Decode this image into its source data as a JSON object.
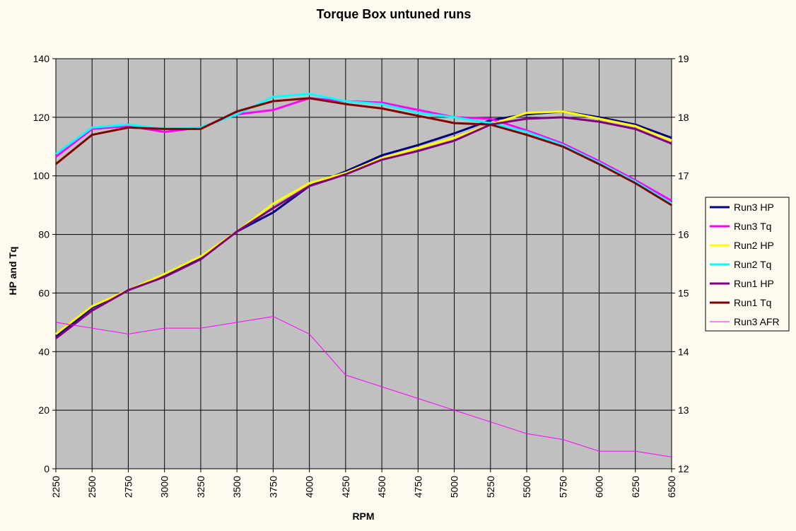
{
  "chart_data": {
    "type": "line",
    "title": "Torque Box untuned runs",
    "xlabel": "RPM",
    "ylabel": "HP and Tq",
    "ylim": [
      0,
      140
    ],
    "y2lim": [
      12,
      19
    ],
    "yticks": [
      "0",
      "20",
      "40",
      "60",
      "80",
      "100",
      "120",
      "140"
    ],
    "y2ticks": [
      "12",
      "13",
      "14",
      "15",
      "16",
      "17",
      "18",
      "19"
    ],
    "x": [
      "2250",
      "2500",
      "2750",
      "3000",
      "3250",
      "3500",
      "3750",
      "4000",
      "4250",
      "4500",
      "4750",
      "5000",
      "5250",
      "5500",
      "5750",
      "6000",
      "6250",
      "6500"
    ],
    "grid": true,
    "legend_position": "right",
    "plot_background": "#c0c0c0",
    "series": [
      {
        "name": "Run3 HP",
        "color": "#000080",
        "axis": "left",
        "values": [
          45,
          55,
          61,
          66,
          72,
          81,
          87.5,
          96.5,
          101.5,
          107,
          110.5,
          114.5,
          119,
          121,
          122,
          120,
          117.5,
          113
        ]
      },
      {
        "name": "Run3 Tq",
        "color": "#ff00ff",
        "axis": "left",
        "values": [
          106.5,
          116,
          117,
          115,
          116.5,
          121,
          122.5,
          126.5,
          125.5,
          125,
          122.5,
          120,
          119.5,
          115.5,
          111,
          105,
          98.5,
          91.5
        ]
      },
      {
        "name": "Run2 HP",
        "color": "#ffff00",
        "axis": "left",
        "values": [
          46,
          55.5,
          61,
          66.5,
          72.5,
          81,
          90.5,
          97.5,
          101,
          106,
          109.5,
          113,
          117.5,
          121.5,
          122,
          119.5,
          117,
          112
        ]
      },
      {
        "name": "Run2 Tq",
        "color": "#00ffff",
        "axis": "left",
        "values": [
          107.5,
          116.5,
          117.5,
          116,
          116.5,
          121,
          127,
          128,
          125.5,
          124.5,
          121.5,
          120,
          118,
          115,
          110.5,
          104.5,
          98,
          90.5
        ]
      },
      {
        "name": "Run1 HP",
        "color": "#800080",
        "axis": "left",
        "values": [
          44.5,
          54,
          61,
          65.5,
          71.5,
          81,
          89,
          96.5,
          100.5,
          105.5,
          108.5,
          112,
          117.5,
          119.5,
          120,
          118.5,
          116,
          111
        ]
      },
      {
        "name": "Run1 Tq",
        "color": "#800000",
        "axis": "left",
        "values": [
          104,
          114,
          116.5,
          116,
          116,
          122,
          125.5,
          126.5,
          124.5,
          123,
          120.5,
          118,
          117.5,
          114,
          110,
          104,
          97.5,
          90
        ]
      },
      {
        "name": "Run3 AFR",
        "color": "#ff00ff",
        "axis": "right",
        "thin": true,
        "values": [
          14.5,
          14.4,
          14.3,
          14.4,
          14.4,
          14.5,
          14.6,
          14.3,
          13.6,
          13.4,
          13.2,
          13.0,
          12.8,
          12.6,
          12.5,
          12.3,
          12.3,
          12.2
        ]
      }
    ]
  }
}
